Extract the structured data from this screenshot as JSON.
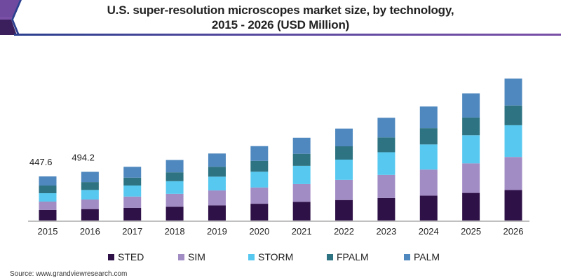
{
  "title_line1": "U.S. super-resolution microscopes market size, by technology,",
  "title_line2": "2015 - 2026 (USD Million)",
  "source": "Source: www.grandviewresearch.com",
  "colors": {
    "STED": "#2e1147",
    "SIM": "#a28cc4",
    "STORM": "#57c8f0",
    "FPALM": "#2d7382",
    "PALM": "#4f88be",
    "axis": "#9a9a9a",
    "title_rule": "#4a4aa0",
    "corner_dark": "#3a1f5c",
    "corner_light": "#7a4fa6"
  },
  "chart_data": {
    "type": "bar",
    "stacked": true,
    "title": "U.S. super-resolution microscopes market size, by technology, 2015 - 2026 (USD Million)",
    "xlabel": "",
    "ylabel": "",
    "grid": false,
    "legend_position": "bottom",
    "ylim": [
      0,
      1500
    ],
    "categories": [
      "2015",
      "2016",
      "2017",
      "2018",
      "2019",
      "2020",
      "2021",
      "2022",
      "2023",
      "2024",
      "2025",
      "2026"
    ],
    "series": [
      {
        "name": "STED",
        "values": [
          107,
          116,
          128,
          140,
          153,
          170,
          190,
          208,
          228,
          252,
          280,
          310
        ]
      },
      {
        "name": "SIM",
        "values": [
          85,
          97,
          115,
          131,
          152,
          165,
          180,
          205,
          235,
          265,
          300,
          335
        ]
      },
      {
        "name": "STORM",
        "values": [
          85,
          97,
          112,
          128,
          140,
          160,
          185,
          205,
          230,
          255,
          285,
          322
        ]
      },
      {
        "name": "FPALM",
        "values": [
          78,
          80,
          80,
          90,
          100,
          110,
          122,
          135,
          150,
          165,
          180,
          200
        ]
      },
      {
        "name": "PALM",
        "values": [
          92.6,
          104.2,
          110,
          125,
          135,
          150,
          163,
          180,
          200,
          220,
          245,
          273
        ]
      }
    ],
    "data_labels": [
      {
        "category": "2015",
        "text": "447.6"
      },
      {
        "category": "2016",
        "text": "494.2"
      }
    ]
  },
  "legend": [
    "STED",
    "SIM",
    "STORM",
    "FPALM",
    "PALM"
  ]
}
